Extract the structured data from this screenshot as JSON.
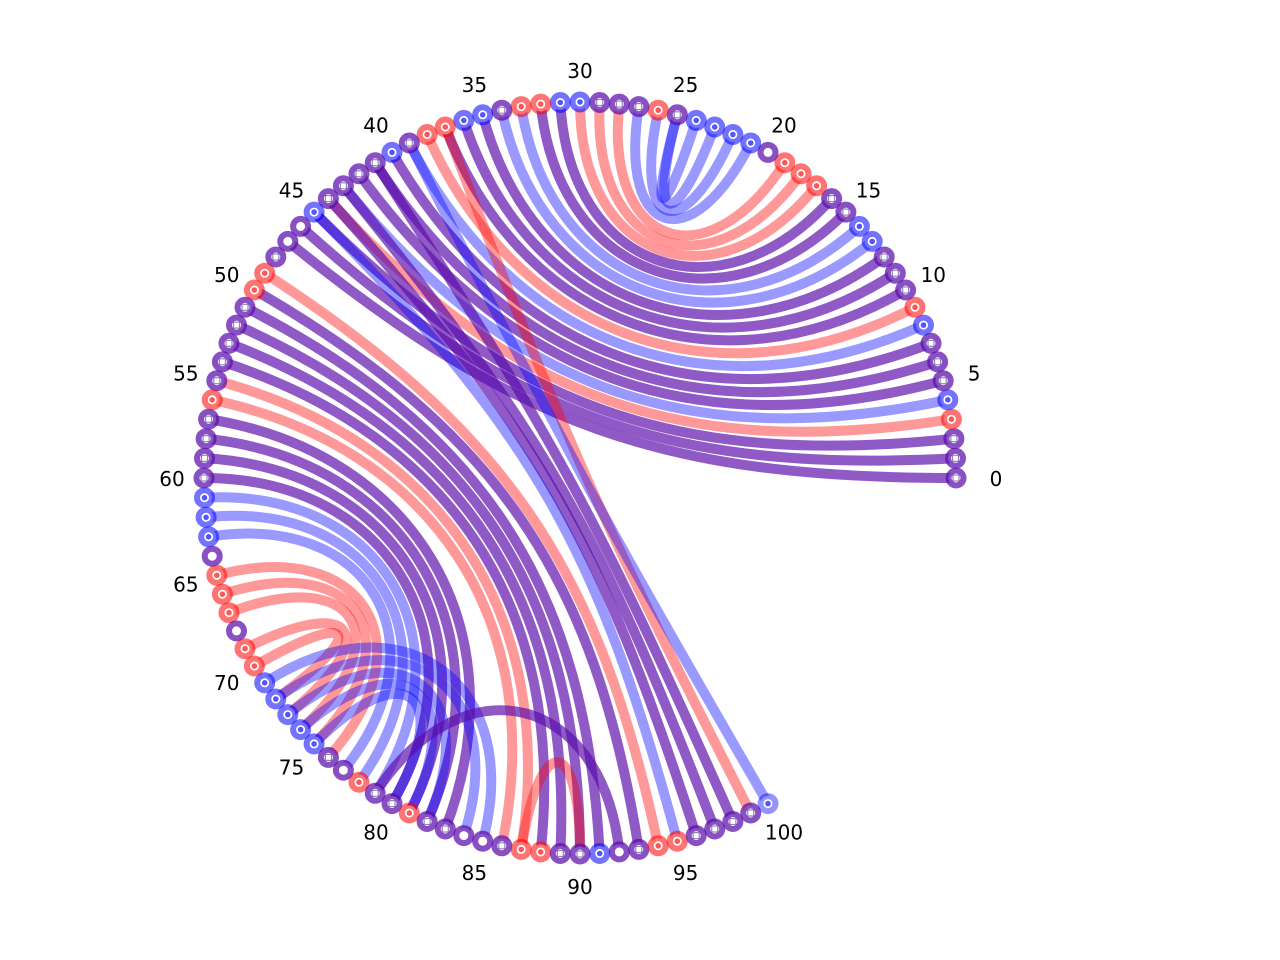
{
  "diagram": {
    "type": "arc-chord-diagram",
    "node_count": 101,
    "labels": [
      "0",
      "5",
      "10",
      "15",
      "20",
      "25",
      "30",
      "35",
      "40",
      "45",
      "50",
      "55",
      "60",
      "65",
      "70",
      "75",
      "80",
      "85",
      "90",
      "95",
      "100"
    ],
    "colors": {
      "red": "#ff0000",
      "blue": "#0000ff",
      "purple": "#5a0cab",
      "ring_red_inner": "#ff5555",
      "ring_blue_inner": "#5555ff",
      "ring_purple_inner": "#7a2acb",
      "hub_blue": "#1a1aff",
      "hub_red": "#ff2a2a"
    },
    "node_colors": [
      "purple",
      "purple",
      "purple",
      "red",
      "blue",
      "purple",
      "purple",
      "purple",
      "blue",
      "red",
      "purple",
      "purple",
      "purple",
      "blue",
      "blue",
      "purple",
      "purple",
      "red",
      "red",
      "red",
      "none",
      "blue",
      "blue",
      "blue",
      "blue",
      "purple",
      "red",
      "purple",
      "purple",
      "purple",
      "blue",
      "blue",
      "red",
      "red",
      "purple",
      "blue",
      "blue",
      "red",
      "red",
      "purple",
      "blue",
      "purple",
      "purple",
      "purple",
      "purple",
      "blue",
      "none",
      "none",
      "purple",
      "red",
      "red",
      "purple",
      "purple",
      "purple",
      "purple",
      "purple",
      "red",
      "purple",
      "purple",
      "purple",
      "purple",
      "blue",
      "blue",
      "blue",
      "none",
      "red",
      "red",
      "red",
      "none",
      "red",
      "red",
      "blue",
      "blue",
      "blue",
      "blue",
      "blue",
      "purple",
      "none",
      "red",
      "purple",
      "purple",
      "red",
      "purple",
      "purple",
      "none",
      "none",
      "purple",
      "red",
      "red",
      "purple",
      "purple",
      "blue",
      "none",
      "purple",
      "red",
      "red",
      "purple",
      "purple",
      "purple",
      "purple",
      "blue"
    ],
    "edges": [
      {
        "from": 0,
        "to": 47,
        "color": "purple"
      },
      {
        "from": 1,
        "to": 46,
        "color": "purple"
      },
      {
        "from": 2,
        "to": 45,
        "color": "purple"
      },
      {
        "from": 3,
        "to": 44,
        "color": "red"
      },
      {
        "from": 4,
        "to": 43,
        "color": "blue"
      },
      {
        "from": 5,
        "to": 42,
        "color": "purple"
      },
      {
        "from": 6,
        "to": 41,
        "color": "purple"
      },
      {
        "from": 7,
        "to": 40,
        "color": "purple"
      },
      {
        "from": 8,
        "to": 39,
        "color": "blue"
      },
      {
        "from": 9,
        "to": 38,
        "color": "red"
      },
      {
        "from": 10,
        "to": 37,
        "color": "purple"
      },
      {
        "from": 11,
        "to": 36,
        "color": "purple"
      },
      {
        "from": 12,
        "to": 35,
        "color": "purple"
      },
      {
        "from": 13,
        "to": 34,
        "color": "blue"
      },
      {
        "from": 14,
        "to": 33,
        "color": "blue"
      },
      {
        "from": 15,
        "to": 32,
        "color": "purple"
      },
      {
        "from": 16,
        "to": 31,
        "color": "purple"
      },
      {
        "from": 17,
        "to": 30,
        "color": "red"
      },
      {
        "from": 18,
        "to": 29,
        "color": "red"
      },
      {
        "from": 19,
        "to": 28,
        "color": "red"
      },
      {
        "from": 21,
        "to": 27,
        "color": "blue"
      },
      {
        "from": 22,
        "to": 26,
        "color": "blue"
      },
      {
        "from": 23,
        "to": 25,
        "color": "blue"
      },
      {
        "from": 24,
        "to": 25,
        "color": "blue"
      },
      {
        "from": 37,
        "to": 99,
        "color": "red"
      },
      {
        "from": 39,
        "to": 100,
        "color": "blue"
      },
      {
        "from": 41,
        "to": 98,
        "color": "purple"
      },
      {
        "from": 43,
        "to": 97,
        "color": "purple"
      },
      {
        "from": 44,
        "to": 96,
        "color": "purple"
      },
      {
        "from": 45,
        "to": 95,
        "color": "blue"
      },
      {
        "from": 49,
        "to": 94,
        "color": "red"
      },
      {
        "from": 50,
        "to": 93,
        "color": "purple"
      },
      {
        "from": 51,
        "to": 91,
        "color": "purple"
      },
      {
        "from": 52,
        "to": 90,
        "color": "purple"
      },
      {
        "from": 53,
        "to": 89,
        "color": "purple"
      },
      {
        "from": 54,
        "to": 88,
        "color": "purple"
      },
      {
        "from": 55,
        "to": 87,
        "color": "red"
      },
      {
        "from": 56,
        "to": 86,
        "color": "red"
      },
      {
        "from": 57,
        "to": 83,
        "color": "purple"
      },
      {
        "from": 58,
        "to": 82,
        "color": "purple"
      },
      {
        "from": 59,
        "to": 81,
        "color": "purple"
      },
      {
        "from": 60,
        "to": 80,
        "color": "purple"
      },
      {
        "from": 61,
        "to": 79,
        "color": "blue"
      },
      {
        "from": 62,
        "to": 78,
        "color": "blue"
      },
      {
        "from": 63,
        "to": 77,
        "color": "blue"
      },
      {
        "from": 65,
        "to": 76,
        "color": "red"
      },
      {
        "from": 66,
        "to": 75,
        "color": "red"
      },
      {
        "from": 67,
        "to": 74,
        "color": "red"
      },
      {
        "from": 69,
        "to": 73,
        "color": "red"
      },
      {
        "from": 70,
        "to": 72,
        "color": "red"
      },
      {
        "from": 71,
        "to": 85,
        "color": "blue"
      },
      {
        "from": 72,
        "to": 84,
        "color": "blue"
      },
      {
        "from": 73,
        "to": 82,
        "color": "blue"
      },
      {
        "from": 74,
        "to": 81,
        "color": "blue"
      },
      {
        "from": 75,
        "to": 80,
        "color": "blue"
      },
      {
        "from": 79,
        "to": 92,
        "color": "purple"
      },
      {
        "from": 87,
        "to": 90,
        "color": "red"
      }
    ]
  }
}
